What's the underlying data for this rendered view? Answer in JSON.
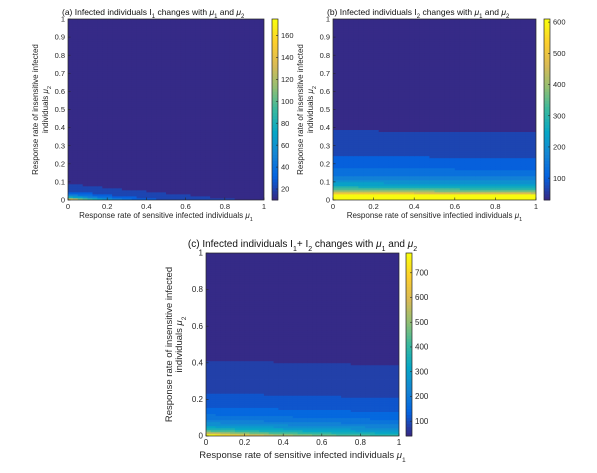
{
  "chart_data": [
    {
      "id": "a",
      "type": "heatmap",
      "title_parts": {
        "prefix": "(a)",
        "text": "Infected individuals I",
        "sub": "1",
        "mid": " changes with ",
        "m1": "μ",
        "m1s": "1",
        "and": " and ",
        "m2": "μ",
        "m2s": "2"
      },
      "xlabel": {
        "text": "Response rate of sensitive infected individuals ",
        "sym": "μ",
        "sub": "1"
      },
      "ylabel": {
        "line1": "Response rate of insensitive infected",
        "line2": "individuals ",
        "sym": "μ",
        "sub": "2"
      },
      "xlim": [
        0,
        1
      ],
      "ylim": [
        0,
        1
      ],
      "xticks": [
        "0",
        "0.2",
        "0.4",
        "0.6",
        "0.8",
        "1"
      ],
      "yticks": [
        "0",
        "0.1",
        "0.2",
        "0.3",
        "0.4",
        "0.5",
        "0.6",
        "0.7",
        "0.8",
        "0.9",
        "1"
      ],
      "colorbar_ticks": [
        "20",
        "40",
        "60",
        "80",
        "100",
        "120",
        "140",
        "160"
      ],
      "colorbar_range": [
        10,
        175
      ],
      "surface": {
        "model": "a",
        "scale": 171.5,
        "decay": 0.018,
        "mu1_weight": 1.2
      },
      "contour_levels": 18,
      "grid": false
    },
    {
      "id": "b",
      "type": "heatmap",
      "title_parts": {
        "prefix": "(b)",
        "text": "Infected individuals I",
        "sub": "2",
        "mid": " changes with ",
        "m1": "μ",
        "m1s": "1",
        "and": " and ",
        "m2": "μ",
        "m2s": "2"
      },
      "xlabel": {
        "text": "Response rate of sensitive infectied individuals ",
        "sym": "μ",
        "sub": "1"
      },
      "ylabel": {
        "line1": "Response rate of insensitive infected",
        "line2": "individuals ",
        "sym": "μ",
        "sub": "2"
      },
      "xlim": [
        0,
        1
      ],
      "ylim": [
        0,
        1
      ],
      "xticks": [
        "0",
        "0.2",
        "0.4",
        "0.6",
        "0.8",
        "1"
      ],
      "yticks": [
        "0",
        "0.1",
        "0.2",
        "0.3",
        "0.4",
        "0.5",
        "0.6",
        "0.7",
        "0.8",
        "0.9",
        "1"
      ],
      "colorbar_ticks": [
        "100",
        "200",
        "300",
        "400",
        "500",
        "600"
      ],
      "colorbar_range": [
        30,
        610
      ],
      "surface": {
        "model": "b",
        "scale": 22,
        "offset": 6
      },
      "contour_levels": 18,
      "grid": false
    },
    {
      "id": "c",
      "type": "heatmap",
      "title_parts": {
        "prefix": "(c)",
        "text": "Infected individuals I",
        "sub": "1",
        "plus": "+ I",
        "sub2": "2",
        "mid": " changes with ",
        "m1": "μ",
        "m1s": "1",
        "and": " and ",
        "m2": "μ",
        "m2s": "2"
      },
      "xlabel": {
        "text": "Response rate of sensitive infected individuals ",
        "sym": "μ",
        "sub": "1"
      },
      "ylabel": {
        "line1": "Response rate of insensitive infected",
        "line2": "individuals ",
        "sym": "μ",
        "sub": "2"
      },
      "xlim": [
        0,
        1
      ],
      "ylim": [
        0,
        1
      ],
      "xticks": [
        "0",
        "0.2",
        "0.4",
        "0.6",
        "0.8",
        "1"
      ],
      "yticks": [
        "0",
        "0.2",
        "0.4",
        "0.6",
        "0.8",
        "1"
      ],
      "colorbar_ticks": [
        "100",
        "200",
        "300",
        "400",
        "500",
        "600",
        "700"
      ],
      "colorbar_range": [
        40,
        780
      ],
      "surface": {
        "model": "c"
      },
      "contour_levels": 22,
      "grid": false
    }
  ],
  "colormap": "parula",
  "colormap_stops": [
    "#352a87",
    "#0363e1",
    "#1485d4",
    "#06a7c6",
    "#38b99e",
    "#92bf73",
    "#d9ba56",
    "#fcce2e",
    "#f9fb0e"
  ]
}
